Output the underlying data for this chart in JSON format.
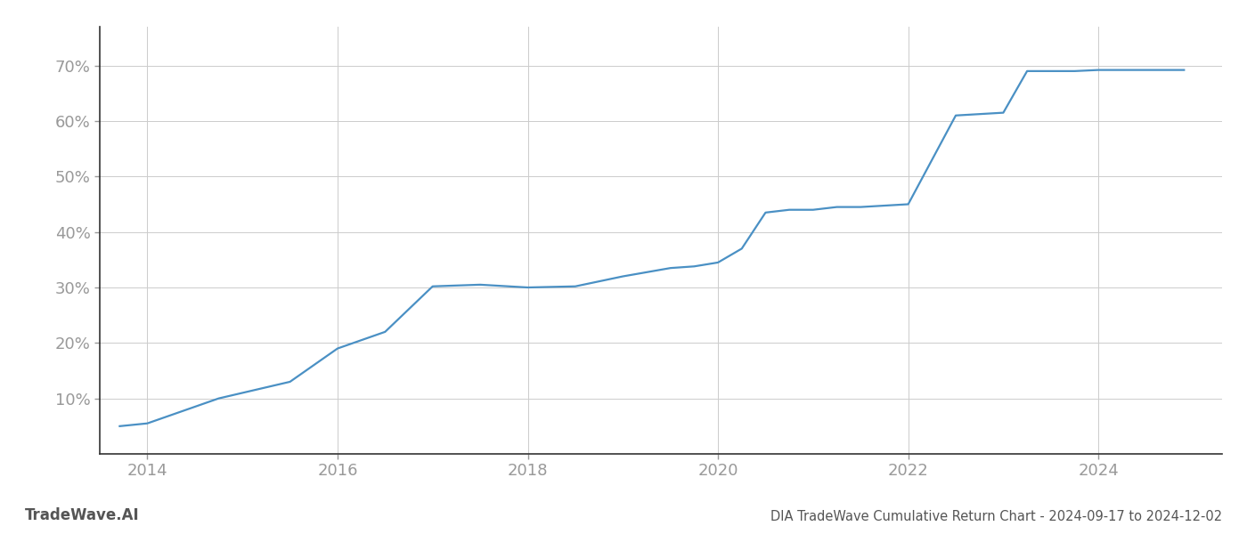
{
  "title": "DIA TradeWave Cumulative Return Chart - 2024-09-17 to 2024-12-02",
  "watermark": "TradeWave.AI",
  "line_color": "#4a90c4",
  "background_color": "#ffffff",
  "grid_color": "#cccccc",
  "x_years": [
    2013.71,
    2014.0,
    2014.75,
    2015.5,
    2016.0,
    2016.5,
    2017.0,
    2017.5,
    2018.0,
    2018.5,
    2019.0,
    2019.5,
    2019.75,
    2020.0,
    2020.25,
    2020.5,
    2020.75,
    2021.0,
    2021.25,
    2021.5,
    2022.0,
    2022.5,
    2023.0,
    2023.25,
    2023.75,
    2024.0,
    2024.9
  ],
  "y_values": [
    5.0,
    5.5,
    10.0,
    13.0,
    19.0,
    22.0,
    30.2,
    30.5,
    30.0,
    30.2,
    32.0,
    33.5,
    33.8,
    34.5,
    37.0,
    43.5,
    44.0,
    44.0,
    44.5,
    44.5,
    45.0,
    61.0,
    61.5,
    69.0,
    69.0,
    69.2,
    69.2
  ],
  "xlim": [
    2013.5,
    2025.3
  ],
  "ylim": [
    0,
    77
  ],
  "yticks": [
    10,
    20,
    30,
    40,
    50,
    60,
    70
  ],
  "xticks": [
    2014,
    2016,
    2018,
    2020,
    2022,
    2024
  ],
  "tick_label_color": "#999999",
  "axis_color": "#333333",
  "bottom_text_color": "#555555",
  "title_fontsize": 10.5,
  "tick_fontsize": 13,
  "watermark_fontsize": 12,
  "line_width": 1.6
}
